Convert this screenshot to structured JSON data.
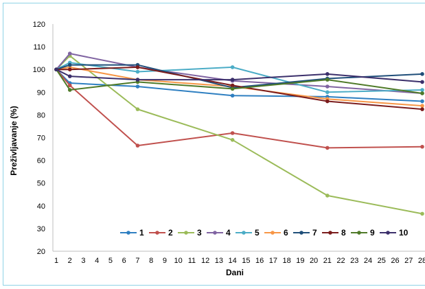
{
  "chart_data": {
    "type": "line",
    "xlabel": "Dani",
    "ylabel": "Preživljavanje  (%)",
    "ylim": [
      20,
      120
    ],
    "yticks": [
      20,
      30,
      40,
      50,
      60,
      70,
      80,
      90,
      100,
      110,
      120
    ],
    "xticks": [
      1,
      2,
      3,
      4,
      5,
      6,
      7,
      8,
      9,
      10,
      11,
      12,
      13,
      14,
      15,
      16,
      17,
      18,
      19,
      20,
      21,
      22,
      23,
      24,
      25,
      26,
      27,
      28
    ],
    "x": [
      1,
      2,
      7,
      14,
      21,
      28
    ],
    "grid": false,
    "legend_position": "bottom-right",
    "series": [
      {
        "name": "1",
        "color": "#2e7fc1",
        "values": [
          100,
          94,
          92.5,
          88.5,
          88,
          86
        ]
      },
      {
        "name": "2",
        "color": "#c0504d",
        "values": [
          100,
          93,
          66.5,
          72,
          65.5,
          66
        ]
      },
      {
        "name": "3",
        "color": "#9bbb59",
        "values": [
          100,
          106,
          82.5,
          69,
          44.5,
          36.5
        ]
      },
      {
        "name": "4",
        "color": "#8064a2",
        "values": [
          100,
          107,
          101,
          95,
          92.5,
          89.5
        ]
      },
      {
        "name": "5",
        "color": "#4bacc6",
        "values": [
          100,
          103,
          99,
          101,
          90,
          91
        ]
      },
      {
        "name": "6",
        "color": "#f79646",
        "values": [
          100,
          101,
          95.5,
          92.5,
          87,
          84
        ]
      },
      {
        "name": "7",
        "color": "#1f4e79",
        "values": [
          100,
          102,
          102,
          92,
          96,
          98
        ]
      },
      {
        "name": "8",
        "color": "#7b1c1c",
        "values": [
          100,
          100,
          101,
          93,
          86,
          82.5
        ]
      },
      {
        "name": "9",
        "color": "#4f7a28",
        "values": [
          100,
          91,
          94.5,
          91.5,
          95.5,
          89.5
        ]
      },
      {
        "name": "10",
        "color": "#3b2f6b",
        "values": [
          100,
          97,
          95.5,
          95.5,
          98,
          94.5
        ]
      }
    ]
  }
}
